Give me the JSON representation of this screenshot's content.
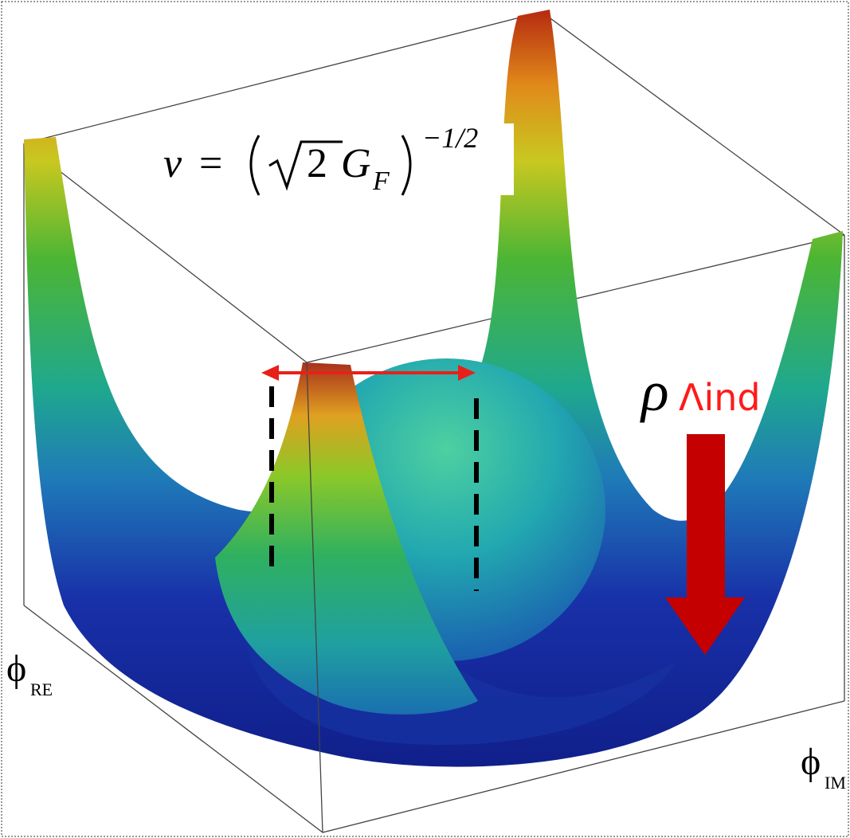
{
  "formula": {
    "lhs": "v",
    "eq": "=",
    "radical": "2",
    "symbol": "G",
    "subscript": "F",
    "exponent": "−1/2"
  },
  "annotation": {
    "symbol": "ρ",
    "subscript": "Λind"
  },
  "axes": {
    "re": {
      "symbol": "ϕ",
      "subscript": "RE"
    },
    "im": {
      "symbol": "ϕ",
      "subscript": "IM"
    }
  }
}
